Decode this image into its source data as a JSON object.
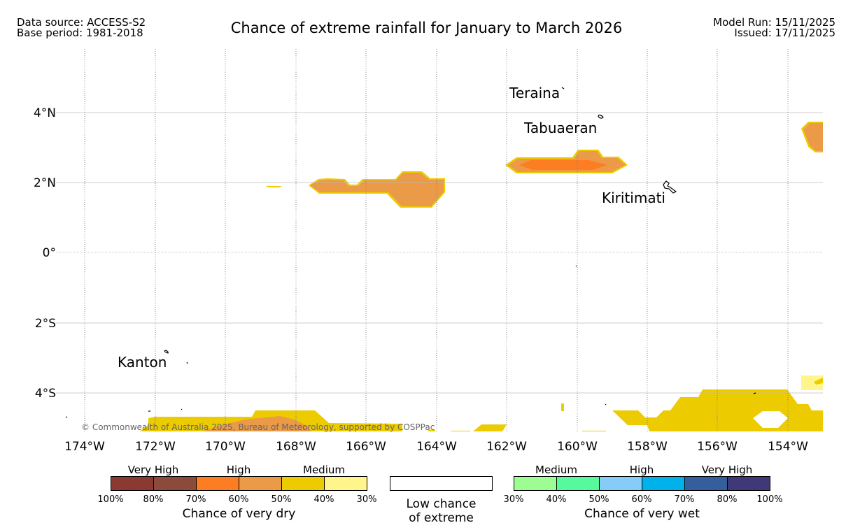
{
  "header": {
    "data_source": "Data source: ACCESS-S2",
    "base_period": "Base period: 1981-2018",
    "title": "Chance of extreme rainfall for January to March 2026",
    "model_run": "Model Run: 15/11/2025",
    "issued": "Issued: 17/11/2025"
  },
  "map": {
    "lat_labels": [
      "4°N",
      "2°N",
      "0°",
      "2°S",
      "4°S"
    ],
    "lon_labels": [
      "174°W",
      "172°W",
      "170°W",
      "168°W",
      "166°W",
      "164°W",
      "162°W",
      "160°W",
      "158°W",
      "156°W",
      "154°W"
    ],
    "places": [
      "Teraina",
      "Tabuaeran",
      "Kiritimati",
      "Kanton"
    ],
    "copyright": "© Commonwealth of Australia 2025, Bureau of Meteorology, supported by COSPPac"
  },
  "legend": {
    "dry": {
      "categories": [
        "Very High",
        "High",
        "Medium"
      ],
      "ticks": [
        "100%",
        "80%",
        "70%",
        "60%",
        "50%",
        "40%",
        "30%"
      ],
      "colors": [
        "#8b3a31",
        "#8a4b3a",
        "#fd7e22",
        "#eb9a47",
        "#eccb00",
        "#fff58a"
      ],
      "label": "Chance of very dry"
    },
    "neutral": {
      "label_line1": "Low chance",
      "label_line2": "of extreme"
    },
    "wet": {
      "categories": [
        "Medium",
        "High",
        "Very High"
      ],
      "ticks": [
        "30%",
        "40%",
        "50%",
        "60%",
        "70%",
        "80%",
        "100%"
      ],
      "colors": [
        "#9dfc92",
        "#56fa9d",
        "#87ccf7",
        "#00b2ec",
        "#355e9d",
        "#3f3a77"
      ],
      "label": "Chance of very wet"
    },
    "colors": {
      "orange_light": "#eb9a47",
      "orange_bright": "#fd7e22",
      "yellow": "#eccb00",
      "pale_yellow": "#fff58a"
    }
  }
}
